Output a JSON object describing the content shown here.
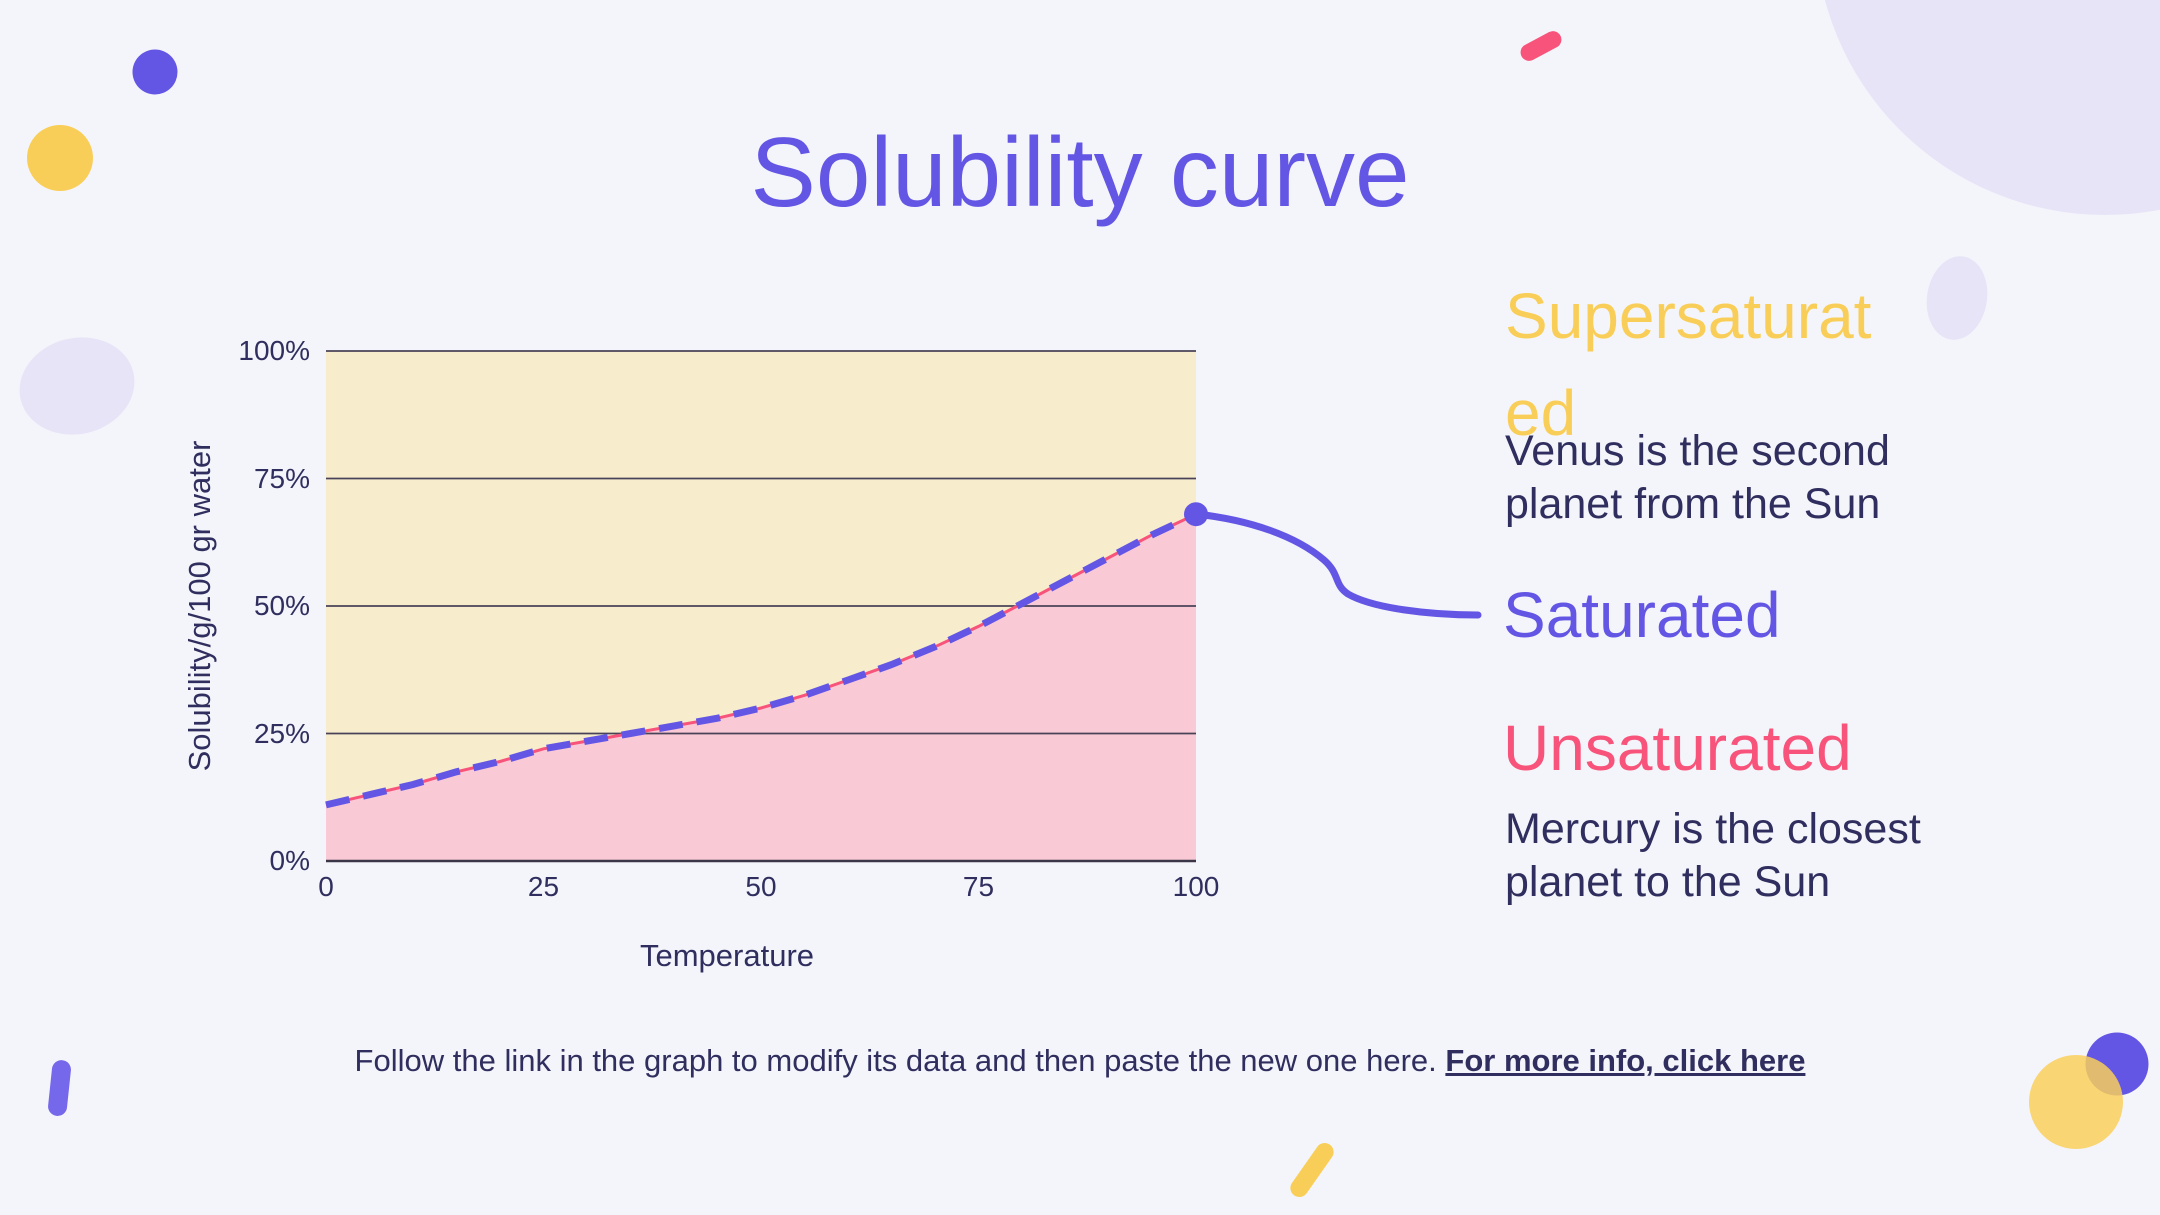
{
  "slide": {
    "background": "#F4F5FA",
    "title": "Solubility curve"
  },
  "palette": {
    "purple": "#6456E4",
    "purple_light": "#7668EA",
    "yellow": "#F9CE58",
    "pink": "#F8537A",
    "lavender": "#E7E4F7",
    "navy": "#302E5E",
    "cream_fill": "#F7EDCD",
    "pink_fill": "#F9C9D6",
    "grid_line": "#4A4358",
    "axis_line": "#3A3547"
  },
  "chart_data": {
    "type": "area",
    "title": "Solubility curve",
    "xlabel": "Temperature",
    "ylabel": "Solubility/g/100 gr water",
    "xlim": [
      0,
      100
    ],
    "ylim": [
      0,
      100
    ],
    "x_ticks": [
      "0",
      "25",
      "50",
      "75",
      "100"
    ],
    "y_ticks": [
      "0%",
      "25%",
      "50%",
      "75%",
      "100%"
    ],
    "grid": true,
    "legend_position": "none",
    "x": [
      0,
      5,
      10,
      15,
      20,
      25,
      30,
      35,
      40,
      45,
      50,
      55,
      60,
      65,
      70,
      75,
      80,
      85,
      90,
      95,
      100
    ],
    "series": [
      {
        "name": "solubility (solid underlay)",
        "color": "#F8537A",
        "style": "solid",
        "values": [
          11,
          13,
          15,
          17.5,
          19.5,
          22,
          23.5,
          25,
          26.5,
          28,
          30,
          32.5,
          35.5,
          38.5,
          42,
          46,
          50.5,
          55,
          59.5,
          64,
          68
        ]
      },
      {
        "name": "solubility (dashed overlay)",
        "color": "#6456E4",
        "style": "dashed",
        "values": [
          11,
          13,
          15,
          17.5,
          19.5,
          22,
          23.5,
          25,
          26.5,
          28,
          30,
          32.5,
          35.5,
          38.5,
          42,
          46,
          50.5,
          55,
          59.5,
          64,
          68
        ]
      }
    ],
    "end_marker": {
      "x": 100,
      "y": 68
    },
    "regions": {
      "above_curve": "Supersaturated",
      "on_curve": "Saturated",
      "below_curve": "Unsaturated"
    }
  },
  "annotations": {
    "supersaturated": {
      "line1": "Supersaturat",
      "line2": "ed"
    },
    "venus": "Venus is the second planet from the Sun",
    "saturated": "Saturated",
    "unsaturated": "Unsaturated",
    "mercury": "Mercury is the closest planet to the Sun"
  },
  "footer": {
    "text": "Follow the link in the graph to modify its data and then paste the new one here. ",
    "link": "For more info, click here"
  }
}
